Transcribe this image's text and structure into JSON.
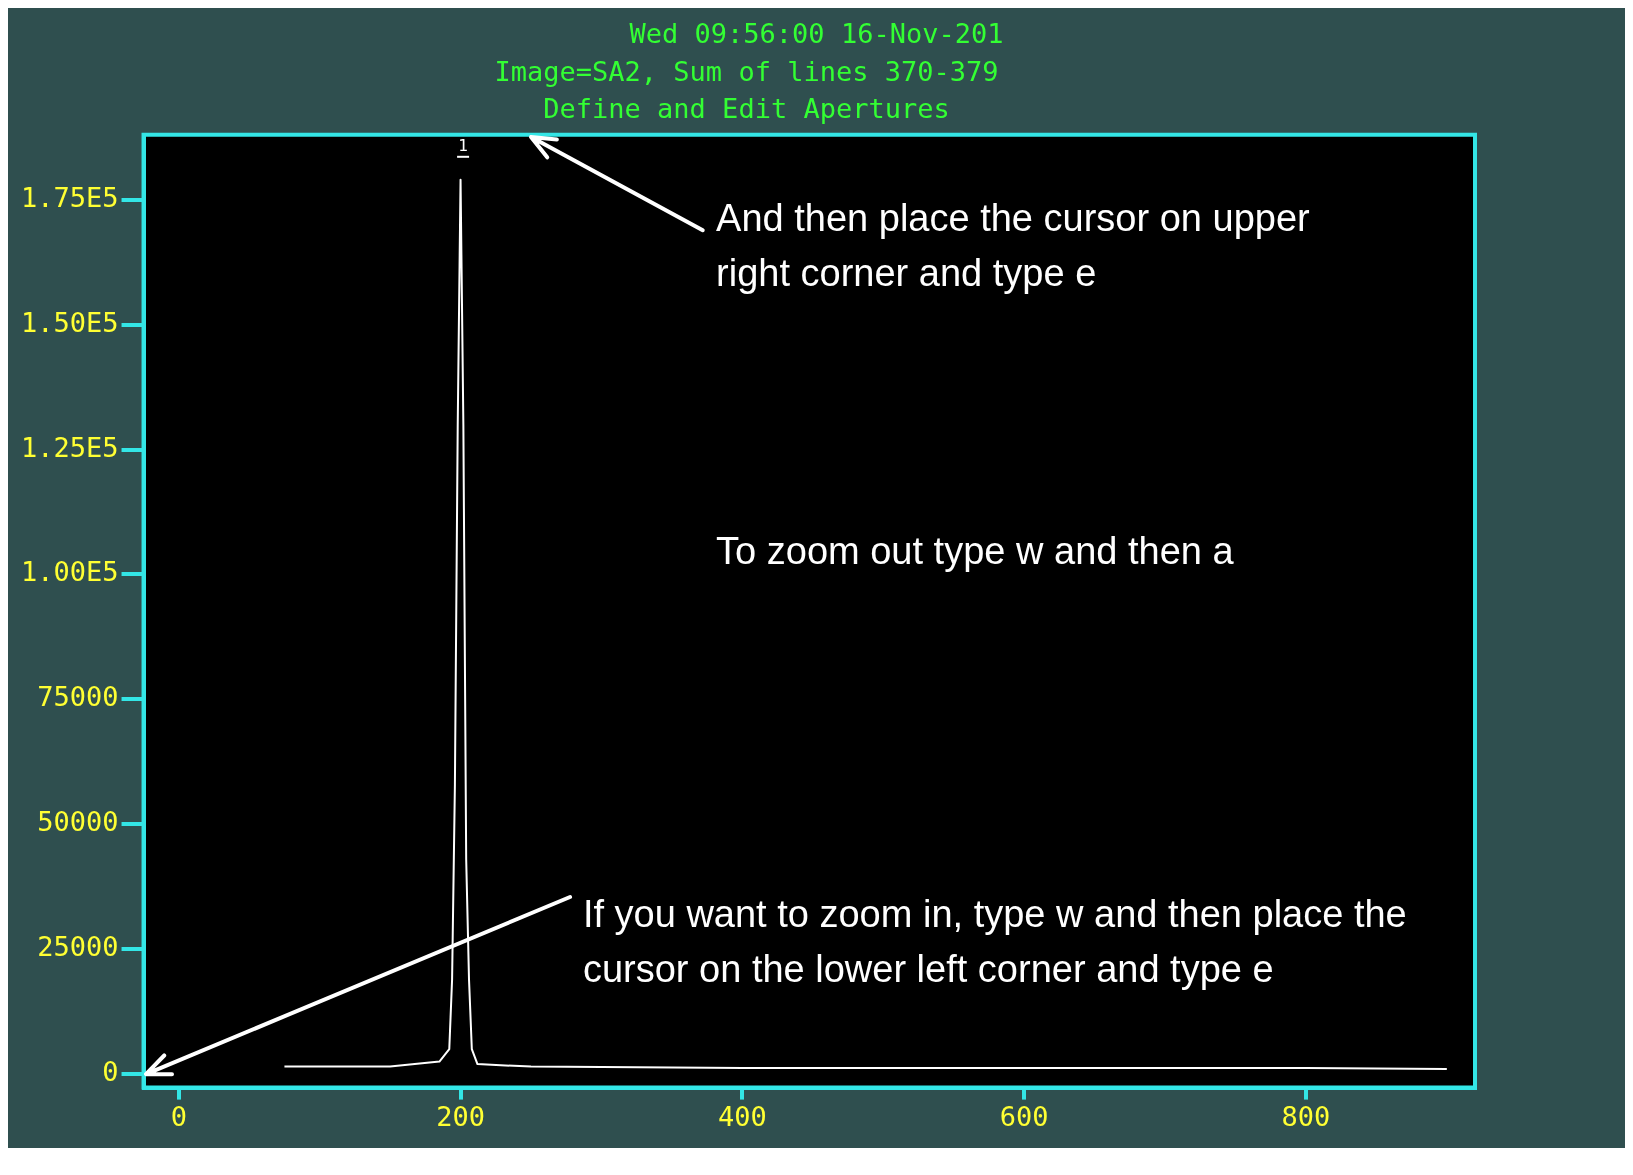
{
  "chart_data": {
    "type": "line",
    "title": "Image=SA2, Sum of lines 370-379",
    "subtitle": "Define and Edit Apertures",
    "annotations": [
      "Wed 09:56:00 16-Nov-201",
      "And then place the cursor on upper right corner and type e",
      "To zoom out type w and then a",
      "If you want to zoom in, type w and then place the cursor on the lower left corner and type e",
      "1"
    ],
    "x": [
      75,
      120,
      150,
      185,
      192,
      194,
      196,
      198,
      200,
      202,
      204,
      206,
      208,
      212,
      250,
      400,
      600,
      800,
      900
    ],
    "series": [
      {
        "color": "#ffffff",
        "values": [
          1500,
          1500,
          1500,
          2500,
          5000,
          19000,
          58000,
          130000,
          179000,
          130000,
          43000,
          19000,
          5000,
          2000,
          1500,
          1200,
          1200,
          1200,
          1000
        ]
      }
    ],
    "xlim": [
      -25,
      920
    ],
    "xticks": [
      0,
      200,
      400,
      600,
      800
    ],
    "ylim": [
      -2700,
      188000
    ],
    "yticks": [
      0,
      25000,
      50000,
      75000,
      {
        "value": 100000,
        "label": "1.00E5"
      },
      {
        "value": 125000,
        "label": "1.25E5"
      },
      {
        "value": 150000,
        "label": "1.50E5"
      },
      {
        "value": 175000,
        "label": "1.75E5"
      }
    ],
    "grid": false,
    "legend": false,
    "marker": "none",
    "line_style": "solid"
  }
}
